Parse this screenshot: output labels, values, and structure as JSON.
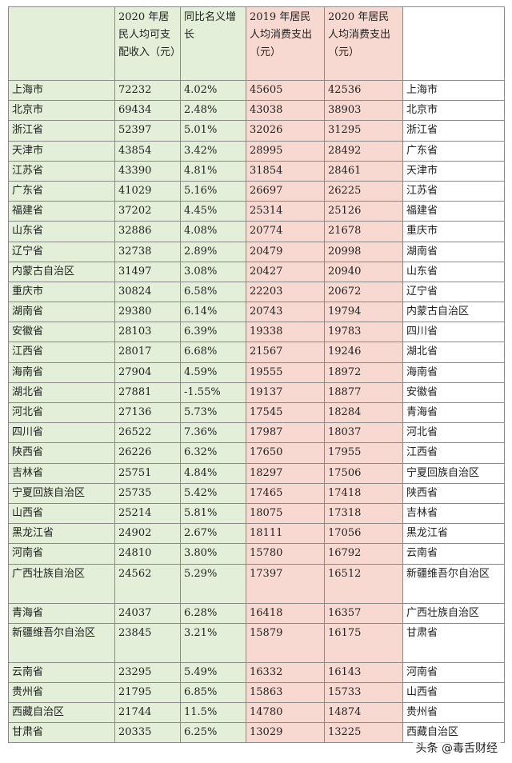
{
  "headers": [
    "",
    "2020 年居民人均可支配收入（元）",
    "同比名义增长",
    "2019 年居民人均消费支出（元）",
    "2020 年居民人均消费支出（元）",
    ""
  ],
  "rows": [
    [
      "上海市",
      "72232",
      "4.02%",
      "45605",
      "42536",
      "上海市"
    ],
    [
      "北京市",
      "69434",
      "2.48%",
      "43038",
      "38903",
      "北京市"
    ],
    [
      "浙江省",
      "52397",
      "5.01%",
      "32026",
      "31295",
      "浙江省"
    ],
    [
      "天津市",
      "43854",
      "3.42%",
      "28995",
      "28492",
      "广东省"
    ],
    [
      "江苏省",
      "43390",
      "4.81%",
      "31854",
      "28461",
      "天津市"
    ],
    [
      "广东省",
      "41029",
      "5.16%",
      "26697",
      "26225",
      "江苏省"
    ],
    [
      "福建省",
      "37202",
      "4.45%",
      "25314",
      "25126",
      "福建省"
    ],
    [
      "山东省",
      "32886",
      "4.08%",
      "20774",
      "21678",
      "重庆市"
    ],
    [
      "辽宁省",
      "32738",
      "2.89%",
      "20479",
      "20998",
      "湖南省"
    ],
    [
      "内蒙古自治区",
      "31497",
      "3.08%",
      "20427",
      "20940",
      "山东省"
    ],
    [
      "重庆市",
      "30824",
      "6.58%",
      "22203",
      "20672",
      "辽宁省"
    ],
    [
      "湖南省",
      "29380",
      "6.14%",
      "20743",
      "19794",
      "内蒙古自治区"
    ],
    [
      "安徽省",
      "28103",
      "6.39%",
      "19338",
      "19783",
      "四川省"
    ],
    [
      "江西省",
      "28017",
      "6.68%",
      "21567",
      "19246",
      "湖北省"
    ],
    [
      "海南省",
      "27904",
      "4.59%",
      "19555",
      "18972",
      "海南省"
    ],
    [
      "湖北省",
      "27881",
      "-1.55%",
      "19137",
      "18877",
      "安徽省"
    ],
    [
      "河北省",
      "27136",
      "5.73%",
      "17545",
      "18284",
      "青海省"
    ],
    [
      "四川省",
      "26522",
      "7.36%",
      "17987",
      "18037",
      "河北省"
    ],
    [
      "陕西省",
      "26226",
      "6.32%",
      "17650",
      "17955",
      "江西省"
    ],
    [
      "吉林省",
      "25751",
      "4.84%",
      "18297",
      "17506",
      "宁夏回族自治区"
    ],
    [
      "宁夏回族自治区",
      "25735",
      "5.42%",
      "17465",
      "17418",
      "陕西省"
    ],
    [
      "山西省",
      "25214",
      "5.81%",
      "18075",
      "17318",
      "吉林省"
    ],
    [
      "黑龙江省",
      "24902",
      "2.67%",
      "18111",
      "17056",
      "黑龙江省"
    ],
    [
      "河南省",
      "24810",
      "3.80%",
      "15780",
      "16792",
      "云南省"
    ],
    [
      "广西壮族自治区",
      "24562",
      "5.29%",
      "17397",
      "16512",
      "新疆维吾尔自治区"
    ],
    [
      "青海省",
      "24037",
      "6.28%",
      "16418",
      "16357",
      "广西壮族自治区"
    ],
    [
      "新疆维吾尔自治区",
      "23845",
      "3.21%",
      "15879",
      "16175",
      "甘肃省"
    ],
    [
      "云南省",
      "23295",
      "5.49%",
      "16332",
      "16143",
      "河南省"
    ],
    [
      "贵州省",
      "21795",
      "6.85%",
      "15863",
      "15733",
      "山西省"
    ],
    [
      "西藏自治区",
      "21744",
      "11.5%",
      "14780",
      "14874",
      "贵州省"
    ],
    [
      "甘肃省",
      "20335",
      "6.25%",
      "13029",
      "13225",
      "西藏自治区"
    ]
  ],
  "watermark": "头条 @毒舌财经"
}
